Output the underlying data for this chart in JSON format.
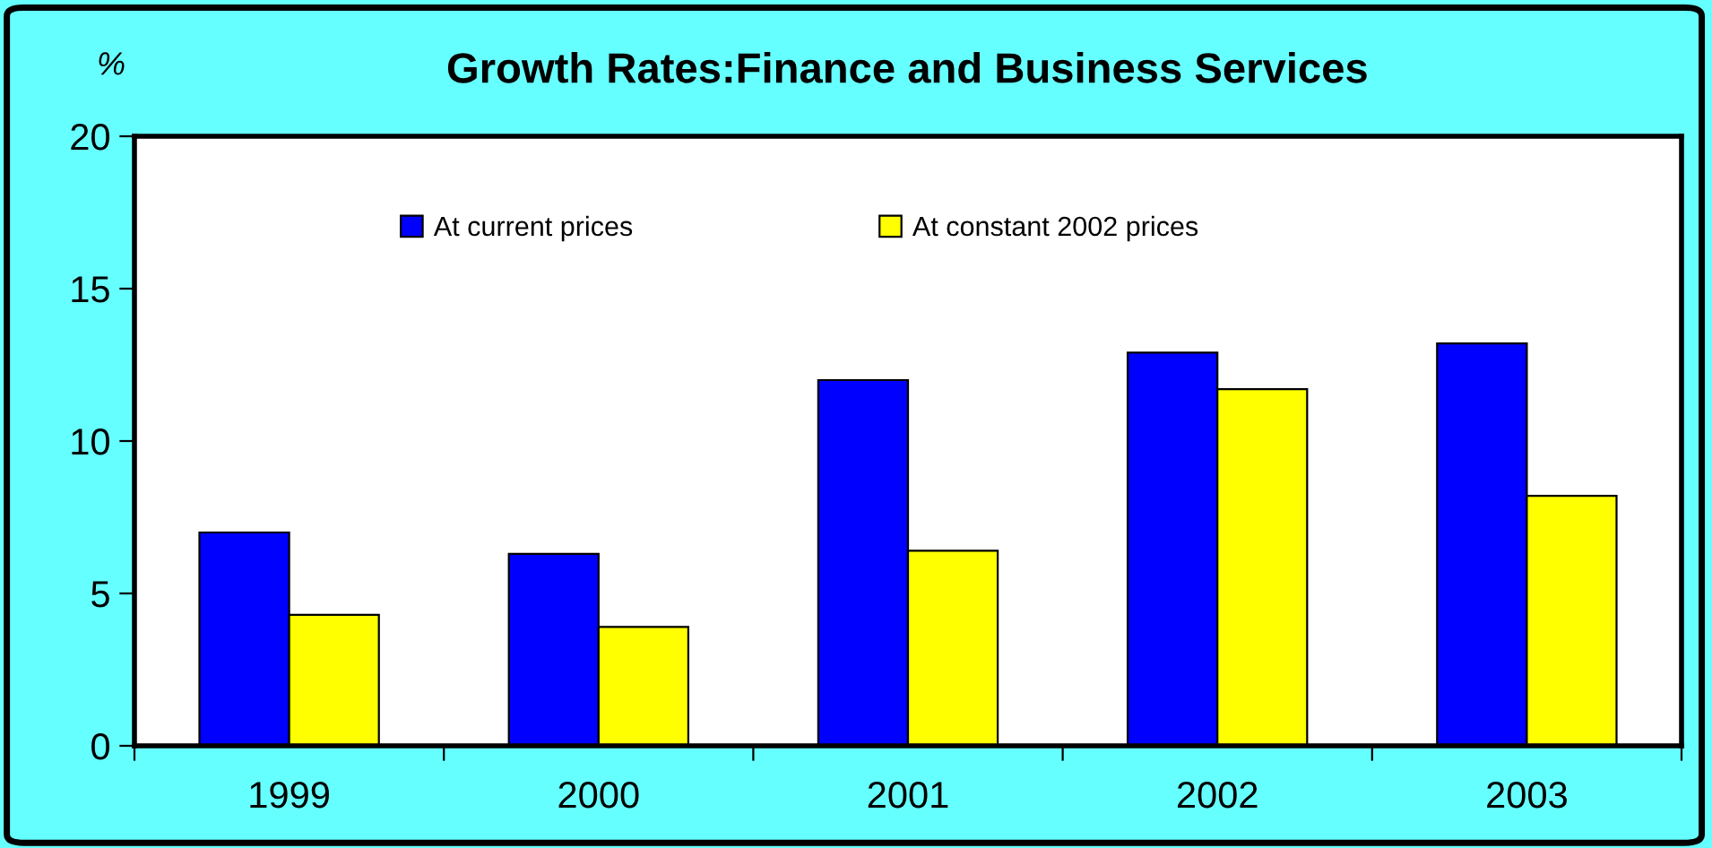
{
  "chart_data": {
    "type": "bar",
    "title": "Growth Rates:Finance and Business Services",
    "ylabel": "%",
    "categories": [
      "1999",
      "2000",
      "2001",
      "2002",
      "2003"
    ],
    "series": [
      {
        "name": "At current prices",
        "color": "#0000ff",
        "values": [
          7.0,
          6.3,
          12.0,
          12.9,
          13.2
        ]
      },
      {
        "name": "At constant 2002 prices",
        "color": "#ffff00",
        "values": [
          4.3,
          3.9,
          6.4,
          11.7,
          8.2
        ]
      }
    ],
    "ylim": [
      0,
      20
    ],
    "yticks": [
      0,
      5,
      10,
      15,
      20
    ],
    "grid": false,
    "legend": "top"
  }
}
